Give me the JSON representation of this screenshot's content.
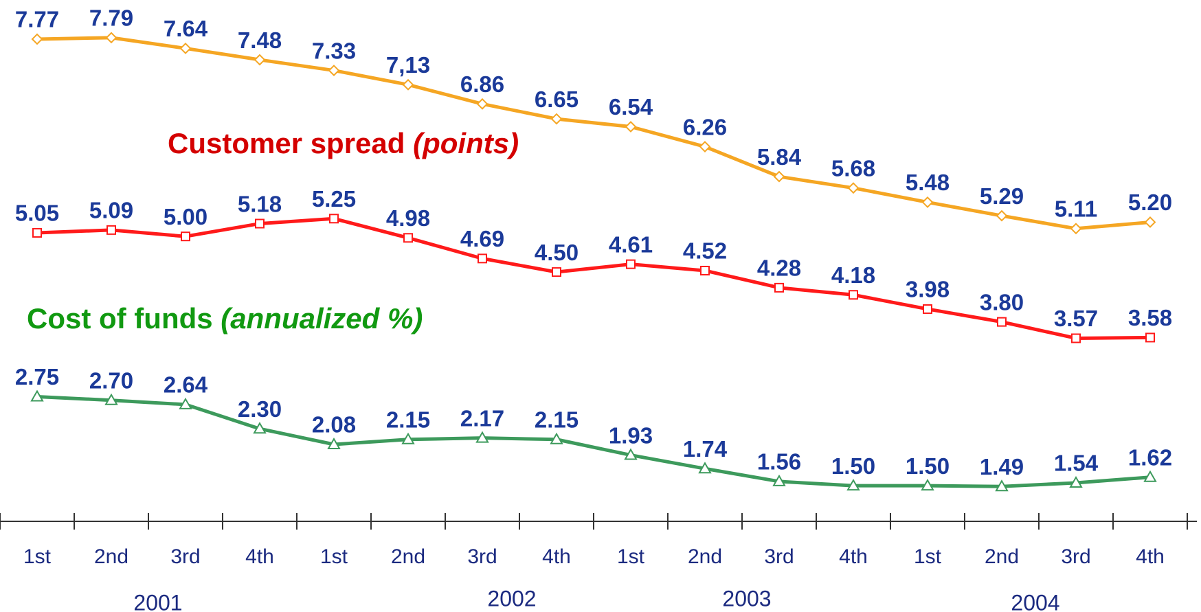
{
  "chart_data": {
    "type": "line",
    "categories": [
      "1st",
      "2nd",
      "3rd",
      "4th",
      "1st",
      "2nd",
      "3rd",
      "4th",
      "1st",
      "2nd",
      "3rd",
      "4th",
      "1st",
      "2nd",
      "3rd",
      "4th"
    ],
    "years": [
      "2001",
      "2002",
      "2003",
      "2004"
    ],
    "ylim": [
      1,
      8.3
    ],
    "annotations": [
      {
        "text": "Customer spread",
        "unit": "(points)",
        "color": "#d40000"
      },
      {
        "text": "Cost of funds",
        "unit": "(annualized %)",
        "color": "#119911"
      }
    ],
    "series": [
      {
        "color": "#f5a623",
        "marker": "diamond",
        "values": [
          7.77,
          7.79,
          7.64,
          7.48,
          7.33,
          7.13,
          6.86,
          6.65,
          6.54,
          6.26,
          5.84,
          5.68,
          5.48,
          5.29,
          5.11,
          5.2
        ],
        "value_labels": [
          "7.77",
          "7.79",
          "7.64",
          "7.48",
          "7.33",
          "7,13",
          "6.86",
          "6.65",
          "6.54",
          "6.26",
          "5.84",
          "5.68",
          "5.48",
          "5.29",
          "5.11",
          "5.20"
        ]
      },
      {
        "color": "#ff1a1a",
        "marker": "square",
        "values": [
          5.05,
          5.09,
          5.0,
          5.18,
          5.25,
          4.98,
          4.69,
          4.5,
          4.61,
          4.52,
          4.28,
          4.18,
          3.98,
          3.8,
          3.57,
          3.58
        ],
        "value_labels": [
          "5.05",
          "5.09",
          "5.00",
          "5.18",
          "5.25",
          "4.98",
          "4.69",
          "4.50",
          "4.61",
          "4.52",
          "4.28",
          "4.18",
          "3.98",
          "3.80",
          "3.57",
          "3.58"
        ]
      },
      {
        "color": "#3d9a5c",
        "marker": "triangle",
        "values": [
          2.75,
          2.7,
          2.64,
          2.3,
          2.08,
          2.15,
          2.17,
          2.15,
          1.93,
          1.74,
          1.56,
          1.5,
          1.5,
          1.49,
          1.54,
          1.62
        ],
        "value_labels": [
          "2.75",
          "2.70",
          "2.64",
          "2.30",
          "2.08",
          "2.15",
          "2.17",
          "2.15",
          "1.93",
          "1.74",
          "1.56",
          "1.50",
          "1.50",
          "1.49",
          "1.54",
          "1.62"
        ]
      }
    ]
  }
}
